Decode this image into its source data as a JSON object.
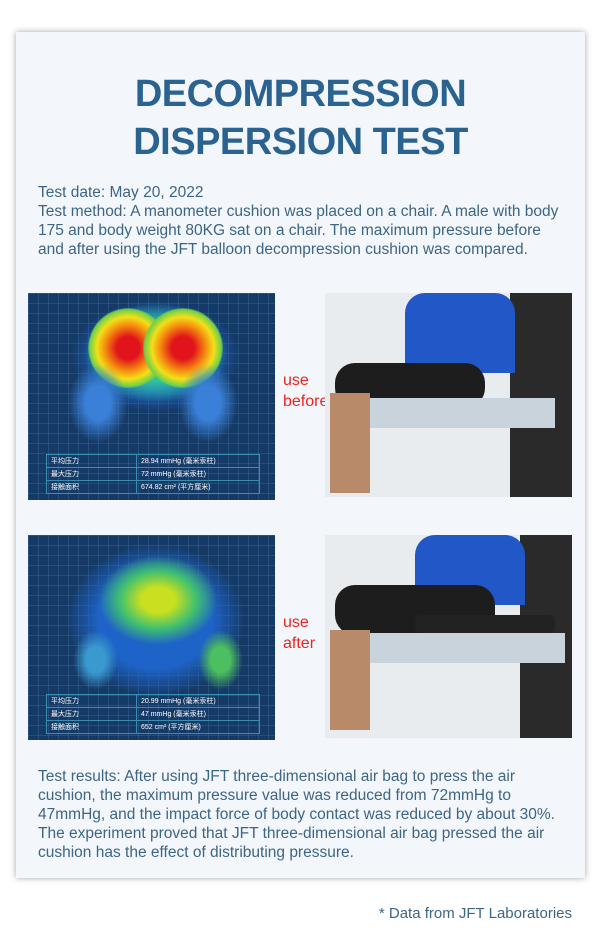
{
  "title_lines": [
    "DECOMPRESSION",
    "DISPERSION TEST"
  ],
  "test_date": "Test date: May 20, 2022",
  "test_method": "Test method: A manometer cushion was placed on a chair. A male with body 175 and body weight 80KG sat on a chair. The maximum pressure before and after using the JFT balloon decompression cushion was compared.",
  "before": {
    "label": "use before",
    "table": [
      [
        "平均压力",
        "28.94 mmHg (毫米汞柱)"
      ],
      [
        "最大压力",
        "72 mmHg (毫米汞柱)"
      ],
      [
        "接触面积",
        "674.82 cm² (平方厘米)"
      ]
    ]
  },
  "after": {
    "label": "use after",
    "table": [
      [
        "平均压力",
        "20.99 mmHg (毫米汞柱)"
      ],
      [
        "最大压力",
        "47 mmHg (毫米汞柱)"
      ],
      [
        "接触面积",
        "652 cm² (平方厘米)"
      ]
    ]
  },
  "results": "Test results: After using JFT three-dimensional air bag to press the air cushion, the maximum pressure value was reduced from 72mmHg to 47mmHg, and the impact force of body contact was reduced by about 30%. The experiment proved that JFT three-dimensional air bag pressed the air cushion has the effect of distributing pressure.",
  "footnote": "* Data from JFT Laboratories",
  "colors": {
    "title": "#2a6290",
    "label": "#e8251f",
    "heatmap_bg": "#163a66"
  }
}
